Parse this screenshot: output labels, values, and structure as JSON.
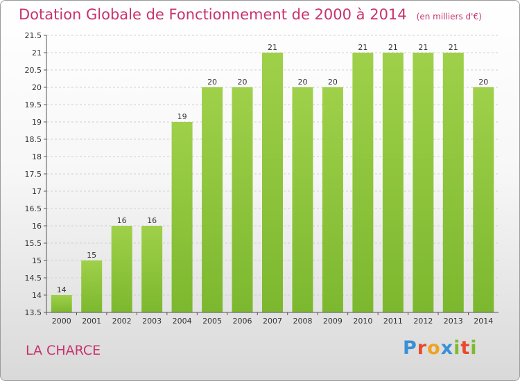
{
  "header": {
    "title": "Dotation Globale de Fonctionnement de 2000 à 2014",
    "unit": "(en milliers d'€)"
  },
  "footer": {
    "place": "LA CHARCE",
    "brand_letters": [
      "P",
      "r",
      "o",
      "x",
      "i",
      "t",
      "i"
    ],
    "brand_colors": [
      "#3a8fd6",
      "#e84a2e",
      "#f0a21f",
      "#3a8fd6",
      "#7dbb2e",
      "#e84a2e",
      "#7dbb2e"
    ]
  },
  "chart_data": {
    "type": "bar",
    "title": "Dotation Globale de Fonctionnement de 2000 à 2014",
    "subtitle": "(en milliers d'€)",
    "categories": [
      "2000",
      "2001",
      "2002",
      "2003",
      "2004",
      "2005",
      "2006",
      "2007",
      "2008",
      "2009",
      "2010",
      "2011",
      "2012",
      "2013",
      "2014"
    ],
    "values": [
      14,
      15,
      16,
      16,
      19,
      20,
      20,
      21,
      20,
      20,
      21,
      21,
      21,
      21,
      20
    ],
    "data_labels": [
      "14",
      "15",
      "16",
      "16",
      "19",
      "20",
      "20",
      "21",
      "20",
      "20",
      "21",
      "21",
      "21",
      "21",
      "20"
    ],
    "ylim": [
      13.5,
      21.5
    ],
    "yticks": [
      "13.5",
      "14",
      "14.5",
      "15",
      "15.5",
      "16",
      "16.5",
      "17",
      "17.5",
      "18",
      "18.5",
      "19",
      "19.5",
      "20",
      "20.5",
      "21",
      "21.5"
    ],
    "grid": true,
    "bar_color": "#7cb82f",
    "bar_color_light": "#9fd04a"
  }
}
